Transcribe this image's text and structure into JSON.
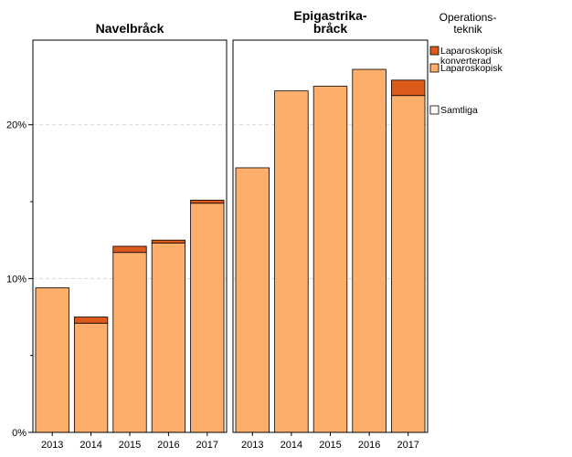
{
  "chart_data": {
    "type": "bar",
    "stacked": true,
    "grid": true,
    "ylim": [
      0,
      0.255
    ],
    "yticks": [
      {
        "value": 0,
        "label": "0%"
      },
      {
        "value": 0.1,
        "label": "10%"
      },
      {
        "value": 0.2,
        "label": "20%"
      }
    ],
    "legend": {
      "position": "top-right",
      "title_lines": [
        "Operations-",
        "teknik"
      ],
      "entries": [
        {
          "lines": [
            "Laparoskopisk",
            "konverterad"
          ],
          "color": "#dd5b1a"
        },
        {
          "lines": [
            "Laparoskopisk"
          ],
          "color": "#fdae6b"
        },
        {
          "lines": [
            "Samtliga"
          ],
          "color": "#ffffff"
        }
      ]
    },
    "panels": [
      {
        "title_lines": [
          "Navelbråck"
        ],
        "categories": [
          "2013",
          "2014",
          "2015",
          "2016",
          "2017"
        ],
        "series": [
          {
            "name": "Laparoskopisk",
            "color": "#fdae6b",
            "values": [
              0.094,
              0.071,
              0.117,
              0.123,
              0.149
            ]
          },
          {
            "name": "Laparoskopisk konverterad",
            "color": "#dd5b1a",
            "values": [
              0.0,
              0.004,
              0.004,
              0.002,
              0.002
            ]
          }
        ]
      },
      {
        "title_lines": [
          "Epigastrika-",
          "bråck"
        ],
        "categories": [
          "2013",
          "2014",
          "2015",
          "2016",
          "2017"
        ],
        "series": [
          {
            "name": "Laparoskopisk",
            "color": "#fdae6b",
            "values": [
              0.172,
              0.222,
              0.225,
              0.236,
              0.219
            ]
          },
          {
            "name": "Laparoskopisk konverterad",
            "color": "#dd5b1a",
            "values": [
              0.0,
              0.0,
              0.0,
              0.0,
              0.01
            ]
          }
        ]
      }
    ]
  }
}
